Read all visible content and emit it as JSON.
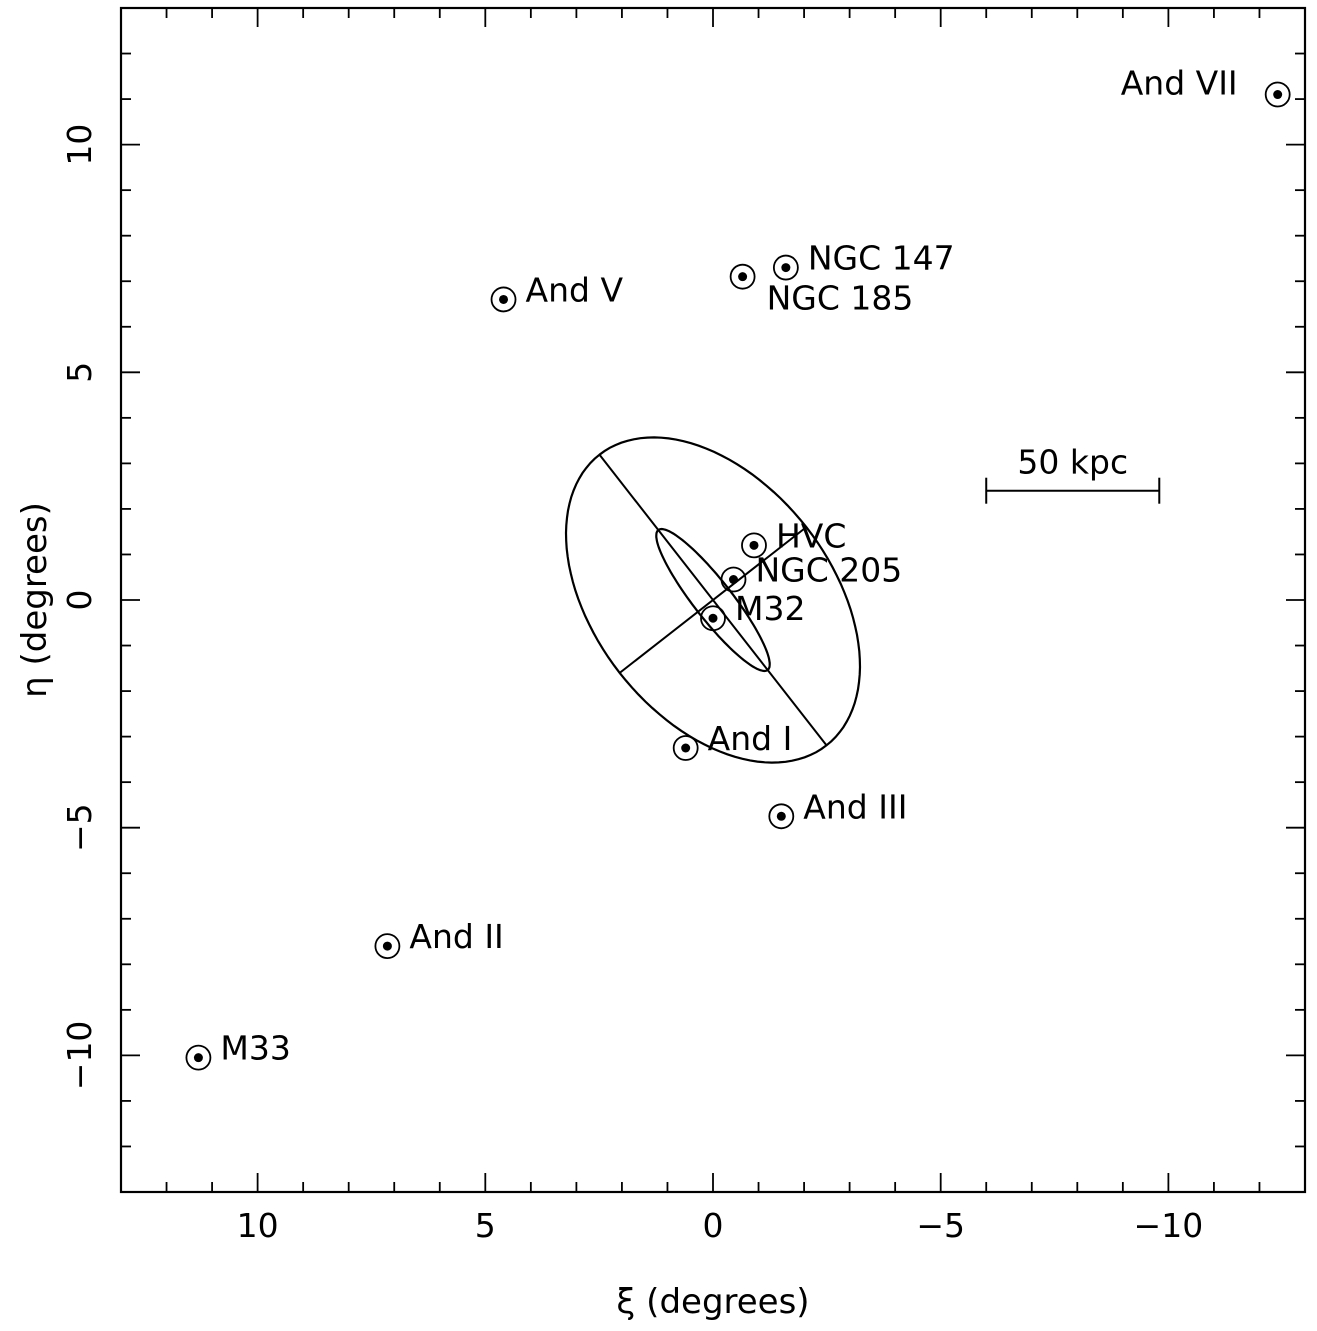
{
  "chart_data": {
    "type": "scatter",
    "xlabel": "ξ (degrees)",
    "ylabel": "η (degrees)",
    "xlim": [
      13,
      -13
    ],
    "ylim": [
      -13,
      13
    ],
    "x_reversed": true,
    "x_ticks": [
      {
        "value": 10,
        "label": "10"
      },
      {
        "value": 5,
        "label": "5"
      },
      {
        "value": 0,
        "label": "0"
      },
      {
        "value": -5,
        "label": "−5"
      },
      {
        "value": -10,
        "label": "−10"
      }
    ],
    "y_ticks": [
      {
        "value": 10,
        "label": "10"
      },
      {
        "value": 5,
        "label": "5"
      },
      {
        "value": 0,
        "label": "0"
      },
      {
        "value": -5,
        "label": "−5"
      },
      {
        "value": -10,
        "label": "−10"
      }
    ],
    "points": [
      {
        "name": "And VII",
        "xi": -12.4,
        "eta": 11.1,
        "label_side": "left"
      },
      {
        "name": "NGC 147",
        "xi": -1.6,
        "eta": 7.3,
        "label_side": "right"
      },
      {
        "name": "NGC 185",
        "xi": -0.65,
        "eta": 7.1,
        "label_side": "below-right"
      },
      {
        "name": "And V",
        "xi": 4.6,
        "eta": 6.6,
        "label_side": "right"
      },
      {
        "name": "HVC",
        "xi": -0.9,
        "eta": 1.2,
        "label_side": "right"
      },
      {
        "name": "NGC 205",
        "xi": -0.45,
        "eta": 0.45,
        "label_side": "right"
      },
      {
        "name": "M32",
        "xi": 0.0,
        "eta": -0.4,
        "label_side": "right"
      },
      {
        "name": "And I",
        "xi": 0.6,
        "eta": -3.25,
        "label_side": "right"
      },
      {
        "name": "And III",
        "xi": -1.5,
        "eta": -4.75,
        "label_side": "right"
      },
      {
        "name": "And II",
        "xi": 7.15,
        "eta": -7.6,
        "label_side": "right"
      },
      {
        "name": "M33",
        "xi": 11.3,
        "eta": -10.05,
        "label_side": "right"
      }
    ],
    "ellipses": [
      {
        "center": [
          0,
          0
        ],
        "semi_major": 4.05,
        "semi_minor": 2.6,
        "pa_deg": 38,
        "axes_drawn": true
      },
      {
        "center": [
          0,
          0
        ],
        "semi_major": 1.95,
        "semi_minor": 0.42,
        "pa_deg": 38,
        "axes_drawn": false
      }
    ],
    "scale_bar": {
      "label": "50 kpc",
      "from_xi": -6.0,
      "to_xi": -9.8,
      "eta": 2.4
    }
  }
}
